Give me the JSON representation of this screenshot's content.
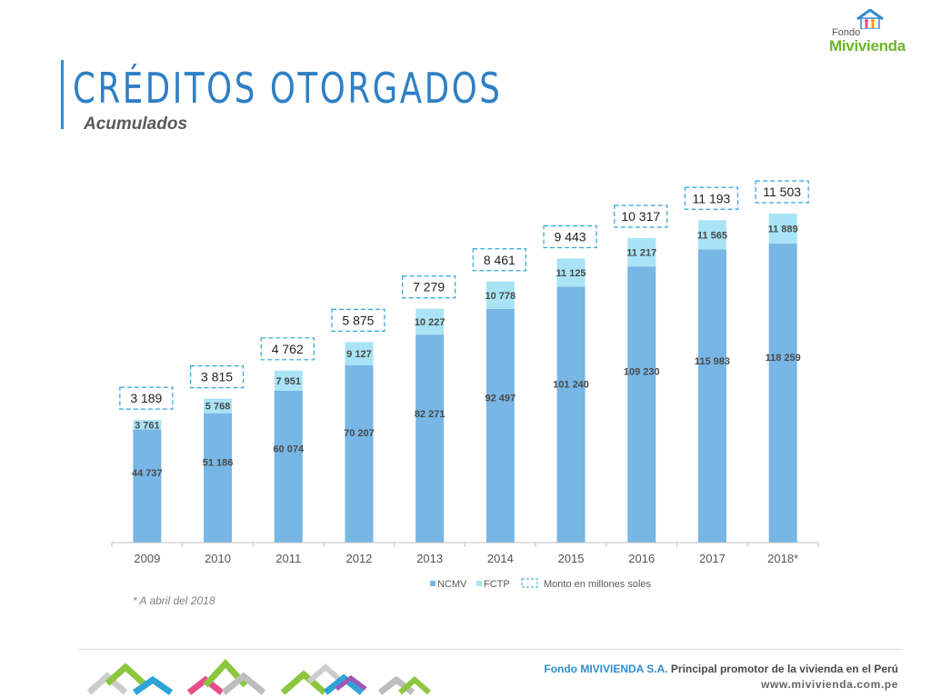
{
  "header": {
    "title": "CRÉDITOS OTORGADOS",
    "subtitle": "Acumulados"
  },
  "logo": {
    "small_text": "Fondo",
    "name": "Mivivienda",
    "icon": "house-family-icon"
  },
  "footnote": "* A abril del 2018",
  "footer": {
    "brand": "Fondo MIVIVIENDA S.A.",
    "tagline": "Principal promotor de la vivienda en el Perú",
    "url": "www.mivivienda.com.pe",
    "decoration_icon": "houses-decoration-icon"
  },
  "colors": {
    "title": "#2f7fc4",
    "ncmv": "#77b6e5",
    "fctp": "#a8e4f6",
    "monto_box_border": "#2ea3d8",
    "axis": "#bfbfbf",
    "footer_brand": "#2f8ccc"
  },
  "chart_data": {
    "type": "bar",
    "stacked": true,
    "categories": [
      "2009",
      "2010",
      "2011",
      "2012",
      "2013",
      "2014",
      "2015",
      "2016",
      "2017",
      "2018*"
    ],
    "series": [
      {
        "name": "NCMV",
        "values": [
          44737,
          51186,
          60074,
          70207,
          82271,
          92497,
          101240,
          109230,
          115983,
          118259
        ]
      },
      {
        "name": "FCTP",
        "values": [
          3761,
          5768,
          7951,
          9127,
          10227,
          10778,
          11125,
          11217,
          11565,
          11889
        ]
      }
    ],
    "value_labels": {
      "NCMV": [
        "44 737",
        "51 186",
        "60 074",
        "70 207",
        "82 271",
        "92 497",
        "101 240",
        "109 230",
        "115 983",
        "118 259"
      ],
      "FCTP": [
        "3 761",
        "5 768",
        "7 951",
        "9 127",
        "10 227",
        "10 778",
        "11 125",
        "11 217",
        "11 565",
        "11 889"
      ]
    },
    "monto": {
      "name": "Monto en millones soles",
      "values": [
        3189,
        3815,
        4762,
        5875,
        7279,
        8461,
        9443,
        10317,
        11193,
        11503
      ],
      "labels": [
        "3 189",
        "3 815",
        "4 762",
        "5 875",
        "7 279",
        "8 461",
        "9 443",
        "10 317",
        "11 193",
        "11 503"
      ]
    },
    "legend": [
      "NCMV",
      "FCTP",
      "Monto en millones soles"
    ],
    "legend_position": "bottom",
    "ylim": [
      0,
      160000
    ],
    "grid": false,
    "title": "",
    "xlabel": "",
    "ylabel": ""
  }
}
